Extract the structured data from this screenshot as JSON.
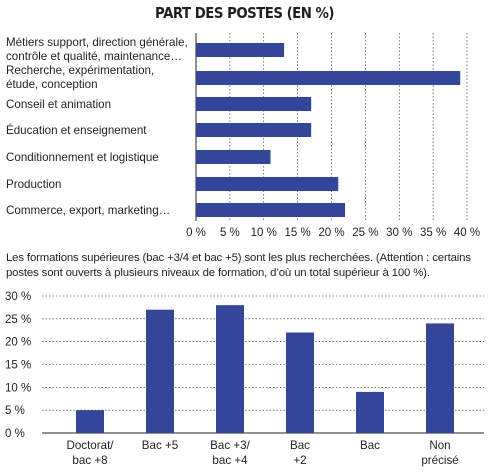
{
  "title": "PART DES POSTES (EN %)",
  "note": "Les formations supérieures (bac +3/4 et bac +5) sont les plus recherchées. (Attention : certains postes sont ouverts à plusieurs niveaux de formation, d’où un total supérieur à 100 %).",
  "colors": {
    "bar": "#33469a",
    "grid": "#231f20",
    "text": "#231f20"
  },
  "chart_data": [
    {
      "type": "bar",
      "orientation": "horizontal",
      "title": "PART DES POSTES (EN %)",
      "categories": [
        [
          "Métiers support, direction générale,",
          "contrôle et qualité, maintenance…"
        ],
        [
          "Recherche, expérimentation,",
          "étude, conception"
        ],
        [
          "Conseil et animation"
        ],
        [
          "Éducation et enseignement"
        ],
        [
          "Conditionnement et logistique"
        ],
        [
          "Production"
        ],
        [
          "Commerce, export, marketing…"
        ]
      ],
      "values": [
        13,
        39,
        17,
        17,
        11,
        21,
        22
      ],
      "xlim": [
        0,
        40
      ],
      "ticks": [
        "0 %",
        "5 %",
        "10 %",
        "15 %",
        "20 %",
        "25 %",
        "30 %",
        "35 %",
        "40 %"
      ],
      "grid": "vertical dashed"
    },
    {
      "type": "bar",
      "orientation": "vertical",
      "categories": [
        [
          "Doctorat/",
          "bac +8"
        ],
        [
          "Bac +5"
        ],
        [
          "Bac +3/",
          "bac +4"
        ],
        [
          "Bac",
          "+2"
        ],
        [
          "Bac"
        ],
        [
          "Non",
          "précisé"
        ]
      ],
      "values": [
        5,
        27,
        28,
        22,
        9,
        24
      ],
      "ylim": [
        0,
        30
      ],
      "ticks": [
        "0 %",
        "5 %",
        "10 %",
        "15 %",
        "20 %",
        "25 %",
        "30 %"
      ],
      "grid": "horizontal dashed"
    }
  ]
}
